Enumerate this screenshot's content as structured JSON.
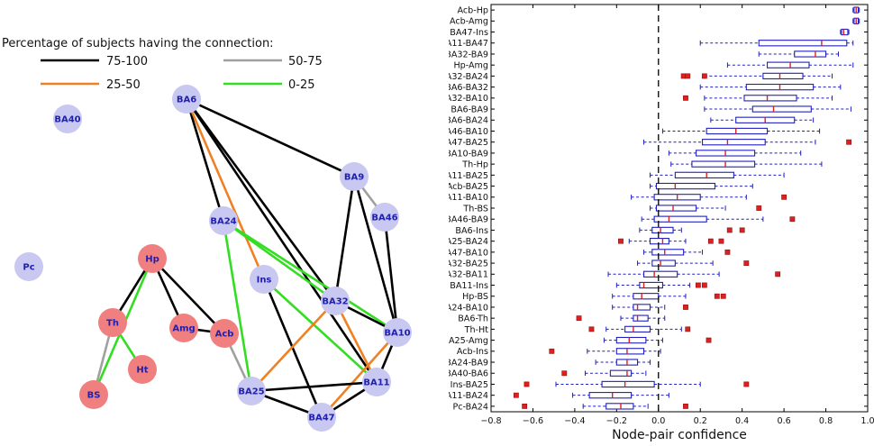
{
  "network": {
    "legend_title": "Percentage of subjects having the connection:",
    "legend": [
      {
        "label": "75-100",
        "color": "#000000"
      },
      {
        "label": "50-75",
        "color": "#a0a0a0"
      },
      {
        "label": "25-50",
        "color": "#f08020"
      },
      {
        "label": "0-25",
        "color": "#33dd22"
      }
    ],
    "colors": {
      "cortical": "#c8c8f0",
      "subcortical": "#f08080",
      "label": "#2020b0"
    },
    "nodes": [
      {
        "id": "BA40",
        "group": "cortical"
      },
      {
        "id": "Pc",
        "group": "cortical"
      },
      {
        "id": "BA6",
        "group": "cortical"
      },
      {
        "id": "BA9",
        "group": "cortical"
      },
      {
        "id": "BA46",
        "group": "cortical"
      },
      {
        "id": "BA24",
        "group": "cortical"
      },
      {
        "id": "Ins",
        "group": "cortical"
      },
      {
        "id": "BA32",
        "group": "cortical"
      },
      {
        "id": "BA10",
        "group": "cortical"
      },
      {
        "id": "BA11",
        "group": "cortical"
      },
      {
        "id": "BA25",
        "group": "cortical"
      },
      {
        "id": "BA47",
        "group": "cortical"
      },
      {
        "id": "Hp",
        "group": "subcortical"
      },
      {
        "id": "Th",
        "group": "subcortical"
      },
      {
        "id": "Amg",
        "group": "subcortical"
      },
      {
        "id": "Acb",
        "group": "subcortical"
      },
      {
        "id": "Ht",
        "group": "subcortical"
      },
      {
        "id": "BS",
        "group": "subcortical"
      }
    ],
    "edges": [
      {
        "a": "BA6",
        "b": "BA9",
        "cat": "75-100"
      },
      {
        "a": "BA6",
        "b": "BA24",
        "cat": "75-100"
      },
      {
        "a": "BA6",
        "b": "BA32",
        "cat": "75-100"
      },
      {
        "a": "BA6",
        "b": "BA11",
        "cat": "75-100"
      },
      {
        "a": "BA6",
        "b": "Ins",
        "cat": "25-50"
      },
      {
        "a": "BA9",
        "b": "BA46",
        "cat": "50-75"
      },
      {
        "a": "BA9",
        "b": "BA32",
        "cat": "75-100"
      },
      {
        "a": "BA9",
        "b": "BA10",
        "cat": "75-100"
      },
      {
        "a": "BA46",
        "b": "BA10",
        "cat": "75-100"
      },
      {
        "a": "BA24",
        "b": "BA10",
        "cat": "0-25"
      },
      {
        "a": "BA24",
        "b": "BA32",
        "cat": "0-25"
      },
      {
        "a": "BA24",
        "b": "BA25",
        "cat": "0-25"
      },
      {
        "a": "Ins",
        "b": "BA47",
        "cat": "75-100"
      },
      {
        "a": "Ins",
        "b": "BA11",
        "cat": "0-25"
      },
      {
        "a": "BA32",
        "b": "BA10",
        "cat": "75-100"
      },
      {
        "a": "BA32",
        "b": "BA25",
        "cat": "25-50"
      },
      {
        "a": "BA32",
        "b": "BA11",
        "cat": "25-50"
      },
      {
        "a": "BA10",
        "b": "BA11",
        "cat": "75-100"
      },
      {
        "a": "BA10",
        "b": "BA47",
        "cat": "25-50"
      },
      {
        "a": "BA11",
        "b": "BA25",
        "cat": "75-100"
      },
      {
        "a": "BA11",
        "b": "BA47",
        "cat": "75-100"
      },
      {
        "a": "BA25",
        "b": "BA47",
        "cat": "75-100"
      },
      {
        "a": "BA25",
        "b": "Acb",
        "cat": "50-75"
      },
      {
        "a": "Hp",
        "b": "Th",
        "cat": "75-100"
      },
      {
        "a": "Hp",
        "b": "Amg",
        "cat": "75-100"
      },
      {
        "a": "Hp",
        "b": "Acb",
        "cat": "75-100"
      },
      {
        "a": "Hp",
        "b": "BS",
        "cat": "0-25"
      },
      {
        "a": "Th",
        "b": "BS",
        "cat": "50-75"
      },
      {
        "a": "Th",
        "b": "Ht",
        "cat": "0-25"
      },
      {
        "a": "Amg",
        "b": "Acb",
        "cat": "75-100"
      }
    ]
  },
  "chart_data": {
    "type": "boxplot",
    "orientation": "horizontal",
    "xlabel": "Node-pair confidence",
    "xlim": [
      -0.8,
      1.0
    ],
    "xticks": [
      "−0.8",
      "−0.6",
      "−0.4",
      "−0.2",
      "0.0",
      "0.2",
      "0.4",
      "0.6",
      "0.8",
      "1.0"
    ],
    "reference_line": 0.0,
    "colors": {
      "box": "#2020c0",
      "median": "#e02020",
      "outlier": "#e02020",
      "reference": "#000000"
    },
    "categories": [
      "Acb-Hp",
      "Acb-Amg",
      "BA47-Ins",
      "BA11-BA47",
      "BA32-BA9",
      "Hp-Amg",
      "BA32-BA24",
      "BA6-BA32",
      "BA32-BA10",
      "BA6-BA9",
      "BA6-BA24",
      "BA46-BA10",
      "BA47-BA25",
      "BA10-BA9",
      "Th-Hp",
      "BA11-BA25",
      "Acb-BA25",
      "BA11-BA10",
      "Th-BS",
      "BA46-BA9",
      "BA6-Ins",
      "BA25-BA24",
      "BA47-BA10",
      "BA32-BA25",
      "BA32-BA11",
      "BA11-Ins",
      "Hp-BS",
      "BA24-BA10",
      "BA6-Th",
      "Th-Ht",
      "BA25-Amg",
      "Acb-Ins",
      "BA24-BA9",
      "BA40-BA6",
      "Ins-BA25",
      "BA11-BA24",
      "Pc-BA24"
    ],
    "boxes": [
      {
        "whisker_low": 0.93,
        "q1": 0.935,
        "median": 0.945,
        "q3": 0.955,
        "whisker_high": 0.96,
        "outliers": []
      },
      {
        "whisker_low": 0.93,
        "q1": 0.935,
        "median": 0.945,
        "q3": 0.955,
        "whisker_high": 0.96,
        "outliers": []
      },
      {
        "whisker_low": 0.87,
        "q1": 0.875,
        "median": 0.885,
        "q3": 0.905,
        "whisker_high": 0.91,
        "outliers": []
      },
      {
        "whisker_low": 0.2,
        "q1": 0.48,
        "median": 0.78,
        "q3": 0.9,
        "whisker_high": 0.93,
        "outliers": []
      },
      {
        "whisker_low": 0.48,
        "q1": 0.65,
        "median": 0.75,
        "q3": 0.8,
        "whisker_high": 0.86,
        "outliers": []
      },
      {
        "whisker_low": 0.33,
        "q1": 0.52,
        "median": 0.63,
        "q3": 0.72,
        "whisker_high": 0.93,
        "outliers": []
      },
      {
        "whisker_low": 0.22,
        "q1": 0.5,
        "median": 0.58,
        "q3": 0.69,
        "whisker_high": 0.83,
        "outliers": [
          0.12,
          0.14,
          0.22
        ]
      },
      {
        "whisker_low": 0.2,
        "q1": 0.42,
        "median": 0.58,
        "q3": 0.74,
        "whisker_high": 0.87,
        "outliers": []
      },
      {
        "whisker_low": 0.22,
        "q1": 0.41,
        "median": 0.52,
        "q3": 0.66,
        "whisker_high": 0.83,
        "outliers": [
          0.13
        ]
      },
      {
        "whisker_low": 0.22,
        "q1": 0.45,
        "median": 0.55,
        "q3": 0.73,
        "whisker_high": 0.92,
        "outliers": []
      },
      {
        "whisker_low": 0.25,
        "q1": 0.37,
        "median": 0.51,
        "q3": 0.65,
        "whisker_high": 0.74,
        "outliers": []
      },
      {
        "whisker_low": 0.02,
        "q1": 0.23,
        "median": 0.37,
        "q3": 0.52,
        "whisker_high": 0.77,
        "outliers": []
      },
      {
        "whisker_low": -0.07,
        "q1": 0.21,
        "median": 0.33,
        "q3": 0.51,
        "whisker_high": 0.75,
        "outliers": [
          0.91
        ]
      },
      {
        "whisker_low": 0.05,
        "q1": 0.18,
        "median": 0.32,
        "q3": 0.46,
        "whisker_high": 0.68,
        "outliers": []
      },
      {
        "whisker_low": 0.06,
        "q1": 0.16,
        "median": 0.32,
        "q3": 0.46,
        "whisker_high": 0.78,
        "outliers": []
      },
      {
        "whisker_low": -0.04,
        "q1": 0.08,
        "median": 0.23,
        "q3": 0.36,
        "whisker_high": 0.6,
        "outliers": []
      },
      {
        "whisker_low": -0.04,
        "q1": -0.01,
        "median": 0.08,
        "q3": 0.27,
        "whisker_high": 0.45,
        "outliers": []
      },
      {
        "whisker_low": -0.13,
        "q1": -0.02,
        "median": 0.09,
        "q3": 0.2,
        "whisker_high": 0.42,
        "outliers": [
          0.6
        ]
      },
      {
        "whisker_low": -0.04,
        "q1": -0.01,
        "median": 0.07,
        "q3": 0.18,
        "whisker_high": 0.32,
        "outliers": [
          0.48
        ]
      },
      {
        "whisker_low": -0.08,
        "q1": -0.02,
        "median": 0.05,
        "q3": 0.23,
        "whisker_high": 0.5,
        "outliers": [
          0.64
        ]
      },
      {
        "whisker_low": -0.09,
        "q1": -0.03,
        "median": 0.01,
        "q3": 0.07,
        "whisker_high": 0.11,
        "outliers": [
          0.34,
          0.4
        ]
      },
      {
        "whisker_low": -0.14,
        "q1": -0.04,
        "median": 0.02,
        "q3": 0.05,
        "whisker_high": 0.13,
        "outliers": [
          -0.18,
          0.25,
          0.3
        ]
      },
      {
        "whisker_low": -0.07,
        "q1": -0.03,
        "median": 0.03,
        "q3": 0.12,
        "whisker_high": 0.21,
        "outliers": [
          0.33
        ]
      },
      {
        "whisker_low": -0.1,
        "q1": -0.03,
        "median": 0.01,
        "q3": 0.08,
        "whisker_high": 0.26,
        "outliers": [
          0.42
        ]
      },
      {
        "whisker_low": -0.24,
        "q1": -0.07,
        "median": -0.02,
        "q3": 0.09,
        "whisker_high": 0.29,
        "outliers": [
          0.57
        ]
      },
      {
        "whisker_low": -0.2,
        "q1": -0.09,
        "median": -0.07,
        "q3": 0.02,
        "whisker_high": 0.15,
        "outliers": [
          0.19,
          0.22
        ]
      },
      {
        "whisker_low": -0.22,
        "q1": -0.12,
        "median": -0.08,
        "q3": 0.0,
        "whisker_high": 0.13,
        "outliers": [
          0.28,
          0.31
        ]
      },
      {
        "whisker_low": -0.22,
        "q1": -0.12,
        "median": -0.1,
        "q3": -0.04,
        "whisker_high": 0.03,
        "outliers": [
          0.13
        ]
      },
      {
        "whisker_low": -0.18,
        "q1": -0.12,
        "median": -0.1,
        "q3": -0.05,
        "whisker_high": 0.03,
        "outliers": [
          -0.38
        ]
      },
      {
        "whisker_low": -0.25,
        "q1": -0.16,
        "median": -0.12,
        "q3": -0.04,
        "whisker_high": 0.11,
        "outliers": [
          -0.32,
          0.14
        ]
      },
      {
        "whisker_low": -0.26,
        "q1": -0.2,
        "median": -0.14,
        "q3": -0.06,
        "whisker_high": 0.02,
        "outliers": [
          0.24
        ]
      },
      {
        "whisker_low": -0.34,
        "q1": -0.2,
        "median": -0.15,
        "q3": -0.07,
        "whisker_high": 0.01,
        "outliers": [
          -0.51
        ]
      },
      {
        "whisker_low": -0.3,
        "q1": -0.2,
        "median": -0.15,
        "q3": -0.1,
        "whisker_high": -0.04,
        "outliers": []
      },
      {
        "whisker_low": -0.35,
        "q1": -0.23,
        "median": -0.15,
        "q3": -0.13,
        "whisker_high": -0.06,
        "outliers": [
          -0.45
        ]
      },
      {
        "whisker_low": -0.49,
        "q1": -0.27,
        "median": -0.16,
        "q3": -0.02,
        "whisker_high": 0.2,
        "outliers": [
          -0.63,
          0.42
        ]
      },
      {
        "whisker_low": -0.41,
        "q1": -0.33,
        "median": -0.22,
        "q3": -0.13,
        "whisker_high": 0.05,
        "outliers": [
          -0.68
        ]
      },
      {
        "whisker_low": -0.36,
        "q1": -0.25,
        "median": -0.18,
        "q3": -0.12,
        "whisker_high": -0.05,
        "outliers": [
          -0.64,
          0.13
        ]
      }
    ]
  }
}
